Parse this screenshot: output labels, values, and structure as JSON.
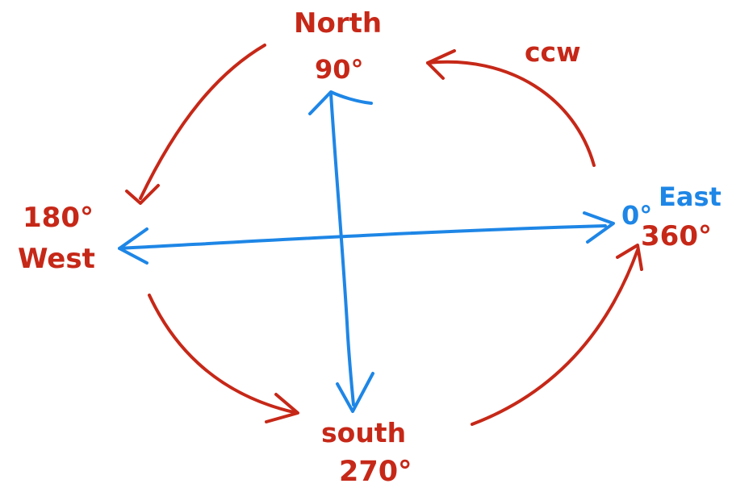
{
  "colors": {
    "red": "#c62818",
    "blue": "#1e86e6",
    "background": "#ffffff"
  },
  "labels": {
    "north": "North",
    "north_degrees": "90°",
    "ccw": "ccw",
    "west_degrees": "180°",
    "west": "West",
    "east_zero": "0°",
    "east": "East",
    "east_degrees": "360°",
    "south": "south",
    "south_degrees": "270°"
  }
}
